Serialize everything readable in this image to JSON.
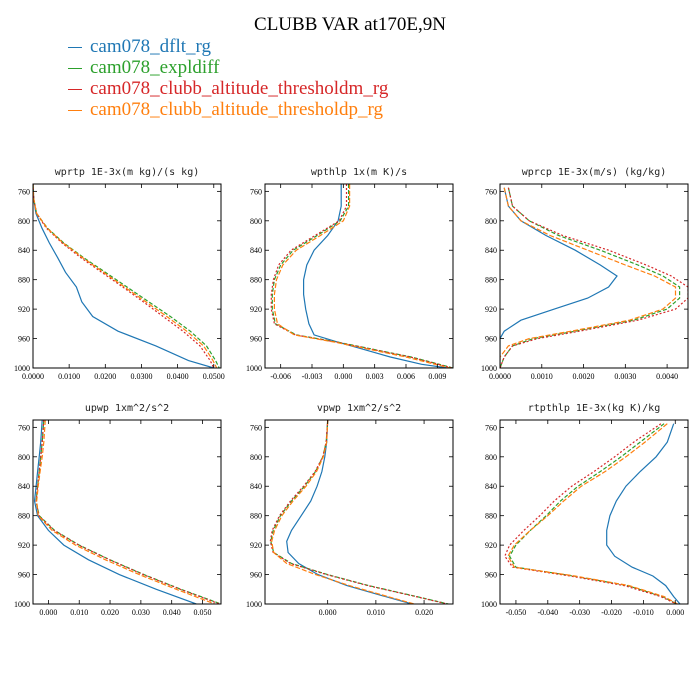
{
  "title": "CLUBB VAR at170E,9N",
  "legend": [
    {
      "label": "cam078_dflt_rg",
      "color": "#1f77b4"
    },
    {
      "label": "cam078_expldiff",
      "color": "#2ca02c"
    },
    {
      "label": "cam078_clubb_altitude_thresholdm_rg",
      "color": "#d62728"
    },
    {
      "label": "cam078_clubb_altitude_thresholdp_rg",
      "color": "#ff7f0e"
    }
  ],
  "chart_data": [
    {
      "type": "line",
      "title": "wprtp  1E-3x(m kg)/(s kg)",
      "xlim": [
        0,
        0.052
      ],
      "ylim": [
        750,
        1000
      ],
      "xticks": [
        0,
        0.01,
        0.02,
        0.03,
        0.04,
        0.05
      ],
      "xtick_labels": [
        "0.0000",
        "0.0100",
        "0.0200",
        "0.0300",
        "0.0400",
        "0.0500"
      ],
      "yticks": [
        760,
        800,
        840,
        880,
        920,
        960,
        1000
      ],
      "y": [
        750,
        770,
        790,
        810,
        830,
        850,
        870,
        890,
        910,
        930,
        950,
        970,
        990,
        1000
      ],
      "series": [
        {
          "name": "cam078_dflt_rg",
          "values": [
            0.0,
            0.0002,
            0.0008,
            0.0025,
            0.0045,
            0.0068,
            0.009,
            0.012,
            0.0135,
            0.0165,
            0.0235,
            0.034,
            0.043,
            0.05
          ]
        },
        {
          "name": "cam078_expldiff",
          "values": [
            0.0,
            0.0002,
            0.001,
            0.004,
            0.0085,
            0.014,
            0.02,
            0.026,
            0.032,
            0.038,
            0.0435,
            0.048,
            0.0505,
            0.0515
          ]
        },
        {
          "name": "cam078_clubb_altitude_thresholdm_rg",
          "values": [
            0.0,
            0.0002,
            0.001,
            0.0037,
            0.008,
            0.0132,
            0.019,
            0.0248,
            0.0305,
            0.036,
            0.0415,
            0.0462,
            0.049,
            0.05
          ]
        },
        {
          "name": "cam078_clubb_altitude_thresholdp_rg",
          "values": [
            0.0,
            0.0002,
            0.001,
            0.0039,
            0.0083,
            0.0137,
            0.0195,
            0.0253,
            0.0312,
            0.037,
            0.0425,
            0.0472,
            0.0498,
            0.0508
          ]
        }
      ]
    },
    {
      "type": "line",
      "title": "wpthlp  1x(m K)/s",
      "xlim": [
        -0.0075,
        0.0105
      ],
      "ylim": [
        750,
        1000
      ],
      "xticks": [
        -0.006,
        -0.003,
        0,
        0.003,
        0.006,
        0.009
      ],
      "xtick_labels": [
        "-0.006",
        "-0.003",
        "0.000",
        "0.003",
        "0.006",
        "0.009"
      ],
      "yticks": [
        760,
        800,
        840,
        880,
        920,
        960,
        1000
      ],
      "y": [
        750,
        780,
        800,
        820,
        840,
        860,
        880,
        900,
        920,
        940,
        955,
        965,
        975,
        985,
        995,
        1000
      ],
      "series": [
        {
          "name": "cam078_dflt_rg",
          "values": [
            -0.0002,
            -0.0002,
            -0.0005,
            -0.0015,
            -0.0028,
            -0.0035,
            -0.0038,
            -0.0038,
            -0.0036,
            -0.0033,
            -0.0028,
            -0.0005,
            0.002,
            0.0045,
            0.0075,
            0.01
          ]
        },
        {
          "name": "cam078_expldiff",
          "values": [
            0.0005,
            0.0005,
            -0.0003,
            -0.0025,
            -0.0048,
            -0.006,
            -0.0066,
            -0.0068,
            -0.0068,
            -0.0065,
            -0.0045,
            -0.0005,
            0.003,
            0.0065,
            0.0092,
            0.0105
          ]
        },
        {
          "name": "cam078_clubb_altitude_thresholdm_rg",
          "values": [
            0.0003,
            0.0003,
            -0.0004,
            -0.0027,
            -0.005,
            -0.0062,
            -0.0067,
            -0.0069,
            -0.0069,
            -0.0066,
            -0.0046,
            -0.0006,
            0.0029,
            0.0064,
            0.0091,
            0.0104
          ]
        },
        {
          "name": "cam078_clubb_altitude_thresholdp_rg",
          "values": [
            0.0006,
            0.0006,
            0.0,
            -0.0022,
            -0.0045,
            -0.0058,
            -0.0064,
            -0.0066,
            -0.0066,
            -0.0063,
            -0.0047,
            -0.0008,
            0.0026,
            0.006,
            0.0088,
            0.0102
          ]
        }
      ]
    },
    {
      "type": "line",
      "title": "wprcp  1E-3x(m/s) (kg/kg)",
      "xlim": [
        0,
        0.0045
      ],
      "ylim": [
        750,
        1000
      ],
      "xticks": [
        0,
        0.001,
        0.002,
        0.003,
        0.004
      ],
      "xtick_labels": [
        "0.0000",
        "0.0010",
        "0.0020",
        "0.0030",
        "0.0040"
      ],
      "yticks": [
        760,
        800,
        840,
        880,
        920,
        960,
        1000
      ],
      "y": [
        755,
        780,
        800,
        820,
        840,
        860,
        875,
        890,
        905,
        920,
        935,
        950,
        960,
        970,
        985,
        1000
      ],
      "series": [
        {
          "name": "cam078_dflt_rg",
          "values": [
            0.0001,
            0.0002,
            0.0005,
            0.0011,
            0.0018,
            0.0024,
            0.0028,
            0.0026,
            0.0021,
            0.0013,
            0.0005,
            0.0001,
            0.0,
            0.0,
            0.0,
            0.0
          ]
        },
        {
          "name": "cam078_expldiff",
          "values": [
            0.0002,
            0.0003,
            0.0007,
            0.0014,
            0.0024,
            0.0033,
            0.0039,
            0.0043,
            0.0043,
            0.004,
            0.0032,
            0.0018,
            0.0008,
            0.0003,
            0.0001,
            0.0
          ]
        },
        {
          "name": "cam078_clubb_altitude_thresholdm_rg",
          "values": [
            0.0002,
            0.0003,
            0.0007,
            0.0015,
            0.0026,
            0.0035,
            0.0041,
            0.0045,
            0.0045,
            0.0042,
            0.0033,
            0.0019,
            0.0009,
            0.0003,
            0.0001,
            0.0
          ]
        },
        {
          "name": "cam078_clubb_altitude_thresholdp_rg",
          "values": [
            0.0001,
            0.0002,
            0.0005,
            0.0012,
            0.0021,
            0.003,
            0.0037,
            0.0042,
            0.0042,
            0.0039,
            0.0031,
            0.0017,
            0.0007,
            0.0002,
            0.0,
            0.0
          ]
        }
      ]
    },
    {
      "type": "line",
      "title": "upwp  1xm^2/s^2",
      "xlim": [
        -0.005,
        0.056
      ],
      "ylim": [
        750,
        1000
      ],
      "xticks": [
        0,
        0.01,
        0.02,
        0.03,
        0.04,
        0.05
      ],
      "xtick_labels": [
        "0.000",
        "0.010",
        "0.020",
        "0.030",
        "0.040",
        "0.050"
      ],
      "yticks": [
        760,
        800,
        840,
        880,
        920,
        960,
        1000
      ],
      "y": [
        750,
        780,
        800,
        820,
        840,
        860,
        880,
        900,
        920,
        940,
        960,
        980,
        1000
      ],
      "series": [
        {
          "name": "cam078_dflt_rg",
          "values": [
            -0.002,
            -0.0025,
            -0.003,
            -0.0035,
            -0.004,
            -0.0045,
            -0.0035,
            0.0,
            0.005,
            0.013,
            0.023,
            0.035,
            0.048
          ]
        },
        {
          "name": "cam078_expldiff",
          "values": [
            -0.0015,
            -0.002,
            -0.0025,
            -0.003,
            -0.0035,
            -0.004,
            -0.003,
            0.002,
            0.01,
            0.02,
            0.031,
            0.043,
            0.056
          ]
        },
        {
          "name": "cam078_clubb_altitude_thresholdm_rg",
          "values": [
            -0.0015,
            -0.002,
            -0.0025,
            -0.003,
            -0.0035,
            -0.004,
            -0.0031,
            0.0018,
            0.0098,
            0.0198,
            0.0308,
            0.0428,
            0.0555
          ]
        },
        {
          "name": "cam078_clubb_altitude_thresholdp_rg",
          "values": [
            -0.001,
            -0.0015,
            -0.002,
            -0.0027,
            -0.0033,
            -0.0038,
            -0.0033,
            0.0012,
            0.0088,
            0.0185,
            0.0295,
            0.0415,
            0.054
          ]
        }
      ]
    },
    {
      "type": "line",
      "title": "vpwp  1xm^2/s^2",
      "xlim": [
        -0.013,
        0.026
      ],
      "ylim": [
        750,
        1000
      ],
      "xticks": [
        0,
        0.01,
        0.02
      ],
      "xtick_labels": [
        "0.000",
        "0.010",
        "0.020"
      ],
      "yticks": [
        760,
        800,
        840,
        880,
        920,
        960,
        1000
      ],
      "y": [
        750,
        780,
        800,
        820,
        840,
        860,
        880,
        900,
        915,
        930,
        945,
        960,
        975,
        990,
        1000
      ],
      "series": [
        {
          "name": "cam078_dflt_rg",
          "values": [
            0.0,
            -0.0002,
            -0.0006,
            -0.0012,
            -0.0022,
            -0.0035,
            -0.0055,
            -0.0075,
            -0.0085,
            -0.0082,
            -0.006,
            -0.002,
            0.004,
            0.012,
            0.0175
          ]
        },
        {
          "name": "cam078_expldiff",
          "values": [
            0.0,
            -0.0003,
            -0.001,
            -0.0025,
            -0.0048,
            -0.0075,
            -0.0098,
            -0.0113,
            -0.0118,
            -0.0112,
            -0.0075,
            0.0,
            0.0085,
            0.0185,
            0.025
          ]
        },
        {
          "name": "cam078_clubb_altitude_thresholdm_rg",
          "values": [
            0.0,
            -0.0003,
            -0.001,
            -0.0026,
            -0.005,
            -0.0077,
            -0.01,
            -0.0115,
            -0.0119,
            -0.0113,
            -0.0077,
            -0.0002,
            0.0083,
            0.0183,
            0.0248
          ]
        },
        {
          "name": "cam078_clubb_altitude_thresholdp_rg",
          "values": [
            0.0,
            -0.0002,
            -0.0009,
            -0.0023,
            -0.0045,
            -0.0072,
            -0.0095,
            -0.011,
            -0.0116,
            -0.0112,
            -0.0085,
            -0.0025,
            0.0045,
            0.0125,
            0.018
          ]
        }
      ]
    },
    {
      "type": "line",
      "title": "rtpthlp  1E-3x(kg K)/kg",
      "xlim": [
        -0.055,
        0.004
      ],
      "ylim": [
        750,
        1000
      ],
      "xticks": [
        -0.05,
        -0.04,
        -0.03,
        -0.02,
        -0.01,
        0
      ],
      "xtick_labels": [
        "-0.050",
        "-0.040",
        "-0.030",
        "-0.020",
        "-0.010",
        "0.000"
      ],
      "yticks": [
        760,
        800,
        840,
        880,
        920,
        960,
        1000
      ],
      "y": [
        755,
        780,
        800,
        820,
        840,
        860,
        880,
        900,
        920,
        935,
        950,
        962,
        975,
        990,
        1000
      ],
      "series": [
        {
          "name": "cam078_dflt_rg",
          "values": [
            -0.0005,
            -0.0025,
            -0.006,
            -0.011,
            -0.0155,
            -0.0185,
            -0.0205,
            -0.0215,
            -0.0215,
            -0.019,
            -0.0135,
            -0.007,
            -0.003,
            -0.0005,
            0.0015
          ]
        },
        {
          "name": "cam078_expldiff",
          "values": [
            -0.0035,
            -0.011,
            -0.017,
            -0.0235,
            -0.0305,
            -0.036,
            -0.0405,
            -0.0455,
            -0.05,
            -0.052,
            -0.05,
            -0.032,
            -0.015,
            -0.004,
            0.0005
          ]
        },
        {
          "name": "cam078_clubb_altitude_thresholdm_rg",
          "values": [
            -0.0045,
            -0.013,
            -0.019,
            -0.0255,
            -0.0325,
            -0.038,
            -0.0425,
            -0.0475,
            -0.052,
            -0.0535,
            -0.051,
            -0.033,
            -0.016,
            -0.0045,
            0.0003
          ]
        },
        {
          "name": "cam078_clubb_altitude_thresholdp_rg",
          "values": [
            -0.0025,
            -0.0095,
            -0.0155,
            -0.022,
            -0.0295,
            -0.035,
            -0.04,
            -0.0455,
            -0.0505,
            -0.0525,
            -0.0505,
            -0.0315,
            -0.0145,
            -0.0035,
            0.0007
          ]
        }
      ]
    }
  ]
}
